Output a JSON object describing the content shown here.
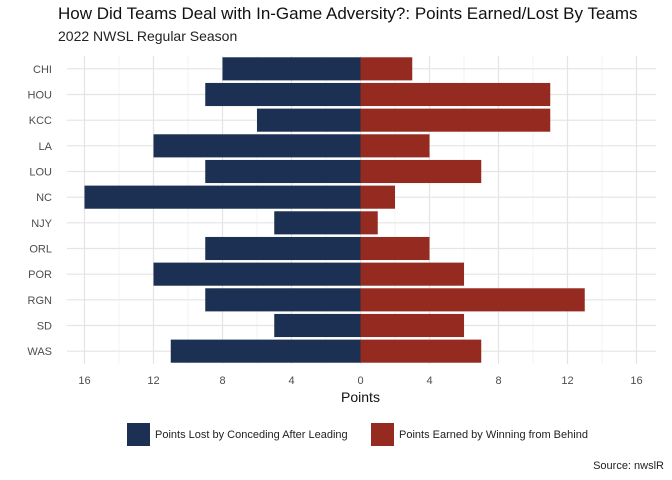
{
  "chart_data": {
    "type": "bar",
    "orientation": "horizontal-diverging",
    "title": "How Did Teams Deal with In-Game Adversity?: Points Earned/Lost By Teams",
    "subtitle": "2022 NWSL Regular Season",
    "xlabel": "Points",
    "ylabel": "",
    "caption": "Source: nwslR",
    "xlim": [
      -17,
      16
    ],
    "xticks": [
      -16,
      -12,
      -8,
      -4,
      0,
      4,
      8,
      12,
      16
    ],
    "xtick_labels": [
      "16",
      "12",
      "8",
      "4",
      "0",
      "4",
      "8",
      "12",
      "16"
    ],
    "categories": [
      "CHI",
      "HOU",
      "KCC",
      "LA",
      "LOU",
      "NC",
      "NJY",
      "ORL",
      "POR",
      "RGN",
      "SD",
      "WAS"
    ],
    "series": [
      {
        "name": "Points Lost by Conceding After Leading",
        "color": "#1b3052",
        "values": [
          8,
          9,
          6,
          12,
          9,
          16,
          5,
          9,
          12,
          9,
          5,
          11
        ]
      },
      {
        "name": "Points Earned by Winning from Behind",
        "color": "#952b20",
        "values": [
          3,
          11,
          11,
          4,
          7,
          2,
          1,
          4,
          6,
          13,
          6,
          7
        ]
      }
    ],
    "grid": true,
    "legend_position": "bottom"
  }
}
